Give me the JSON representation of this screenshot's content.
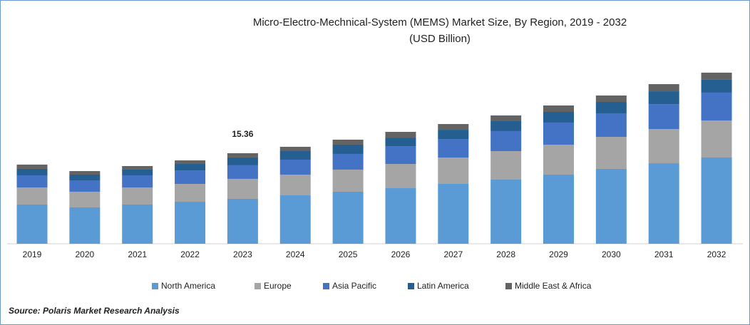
{
  "chart_data": {
    "type": "stacked-bar",
    "title": "Micro-Electro-Mechnical-System (MEMS) Market Size, By Region, 2019 - 2032",
    "subtitle": "(USD Billion)",
    "categories": [
      "2019",
      "2020",
      "2021",
      "2022",
      "2023",
      "2024",
      "2025",
      "2026",
      "2027",
      "2028",
      "2029",
      "2030",
      "2031",
      "2032"
    ],
    "series": [
      {
        "name": "North America",
        "color": "#5b9bd5",
        "values": [
          6.65,
          6.17,
          6.65,
          7.13,
          7.62,
          8.22,
          8.83,
          9.43,
          10.16,
          10.88,
          11.73,
          12.7,
          13.66,
          14.63
        ]
      },
      {
        "name": "Europe",
        "color": "#a5a5a5",
        "values": [
          2.9,
          2.66,
          2.9,
          3.02,
          3.39,
          3.51,
          3.75,
          4.11,
          4.47,
          4.84,
          5.08,
          5.44,
          5.8,
          6.29
        ]
      },
      {
        "name": "Asia Pacific",
        "color": "#4472c4",
        "values": [
          2.06,
          1.93,
          2.06,
          2.3,
          2.3,
          2.54,
          2.66,
          3.02,
          3.14,
          3.39,
          3.75,
          3.99,
          4.23,
          4.72
        ]
      },
      {
        "name": "Latin America",
        "color": "#255e91",
        "values": [
          1.09,
          0.97,
          0.97,
          1.09,
          1.33,
          1.45,
          1.57,
          1.45,
          1.57,
          1.69,
          1.81,
          1.93,
          2.18,
          2.18
        ]
      },
      {
        "name": "Middle East & Africa",
        "color": "#636363",
        "values": [
          0.73,
          0.6,
          0.6,
          0.6,
          0.72,
          0.73,
          0.85,
          0.97,
          0.97,
          0.97,
          1.09,
          1.09,
          1.21,
          1.21
        ]
      }
    ],
    "annotations": [
      {
        "category": "2023",
        "value": 15.36
      }
    ],
    "source": "Source: Polaris  Market Research Analysis"
  }
}
